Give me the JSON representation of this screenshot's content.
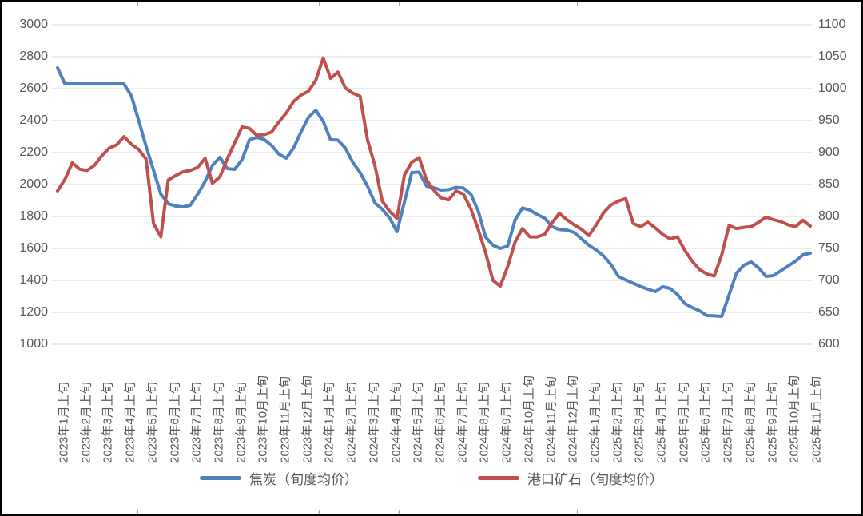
{
  "chart_data": {
    "type": "line",
    "title": "",
    "x_tick_labels": [
      "2023年1月上旬",
      "2023年2月上旬",
      "2023年3月上旬",
      "2023年4月上旬",
      "2023年5月上旬",
      "2023年6月上旬",
      "2023年7月上旬",
      "2023年8月上旬",
      "2023年9月上旬",
      "2023年10月上旬",
      "2023年11月上旬",
      "2023年12月上旬",
      "2024年1月上旬",
      "2024年2月上旬",
      "2024年3月上旬",
      "2024年4月上旬",
      "2024年5月上旬",
      "2024年6月上旬",
      "2024年7月上旬",
      "2024年8月上旬",
      "2024年9月上旬",
      "2024年10月上旬",
      "2024年11月上旬",
      "2024年12月上旬",
      "2025年1月上旬",
      "2025年2月上旬",
      "2025年3月上旬",
      "2025年4月上旬",
      "2025年5月上旬",
      "2025年6月上旬",
      "2025年7月上旬",
      "2025年8月上旬",
      "2025年9月上旬",
      "2025年10月上旬",
      "2025年11月上旬"
    ],
    "points_per_month": 3,
    "x_note": "data is per 旬 (ten-day period); 3 points per labeled month, last label has 1 point",
    "left_axis": {
      "min": 1000,
      "max": 3000,
      "step": 200,
      "ticks": [
        3000,
        2800,
        2600,
        2400,
        2200,
        2000,
        1800,
        1600,
        1400,
        1200,
        1000
      ]
    },
    "right_axis": {
      "min": 600,
      "max": 1100,
      "step": 50,
      "ticks": [
        1100,
        1050,
        1000,
        950,
        900,
        850,
        800,
        750,
        700,
        650,
        600
      ]
    },
    "grid": true,
    "legend_position": "bottom",
    "colors": {
      "coke": "#4F81BD",
      "ore": "#C0504D",
      "gridline": "#D9D9D9",
      "axis_text": "#595959"
    },
    "series": [
      {
        "name": "焦炭（旬度均价）",
        "axis": "left",
        "color": "#4F81BD",
        "values": [
          2730,
          2630,
          2630,
          2630,
          2630,
          2630,
          2630,
          2630,
          2630,
          2630,
          2555,
          2400,
          2240,
          2090,
          1940,
          1880,
          1865,
          1860,
          1870,
          1940,
          2020,
          2120,
          2170,
          2100,
          2095,
          2155,
          2280,
          2295,
          2282,
          2245,
          2190,
          2165,
          2230,
          2330,
          2420,
          2465,
          2395,
          2280,
          2278,
          2228,
          2140,
          2075,
          1990,
          1885,
          1845,
          1790,
          1705,
          1890,
          2075,
          2078,
          1990,
          1980,
          1965,
          1968,
          1982,
          1978,
          1940,
          1835,
          1672,
          1620,
          1600,
          1615,
          1778,
          1853,
          1840,
          1812,
          1790,
          1737,
          1718,
          1715,
          1700,
          1660,
          1620,
          1590,
          1553,
          1500,
          1425,
          1403,
          1382,
          1362,
          1345,
          1330,
          1360,
          1350,
          1312,
          1255,
          1230,
          1210,
          1180,
          1178,
          1175,
          1310,
          1445,
          1495,
          1515,
          1478,
          1425,
          1430,
          1460,
          1490,
          1520,
          1560,
          1570
        ]
      },
      {
        "name": "港口矿石（旬度均价）",
        "axis": "right",
        "color": "#C0504D",
        "values": [
          840,
          858,
          884,
          874,
          872,
          880,
          895,
          907,
          912,
          925,
          913,
          905,
          890,
          789,
          768,
          857,
          864,
          870,
          872,
          877,
          891,
          852,
          862,
          890,
          915,
          940,
          938,
          927,
          928,
          932,
          948,
          962,
          980,
          990,
          996,
          1013,
          1048,
          1016,
          1026,
          1001,
          993,
          988,
          920,
          880,
          824,
          808,
          797,
          865,
          885,
          892,
          857,
          841,
          829,
          826,
          840,
          835,
          812,
          780,
          744,
          700,
          691,
          722,
          760,
          781,
          768,
          768,
          772,
          790,
          805,
          795,
          787,
          780,
          770,
          787,
          806,
          818,
          824,
          828,
          789,
          784,
          791,
          782,
          772,
          765,
          768,
          747,
          730,
          717,
          710,
          707,
          740,
          786,
          781,
          783,
          784,
          791,
          799,
          795,
          792,
          787,
          784,
          794,
          785
        ]
      }
    ]
  },
  "legend": {
    "coke_label": "焦炭（旬度均价）",
    "ore_label": "港口矿石（旬度均价）"
  }
}
